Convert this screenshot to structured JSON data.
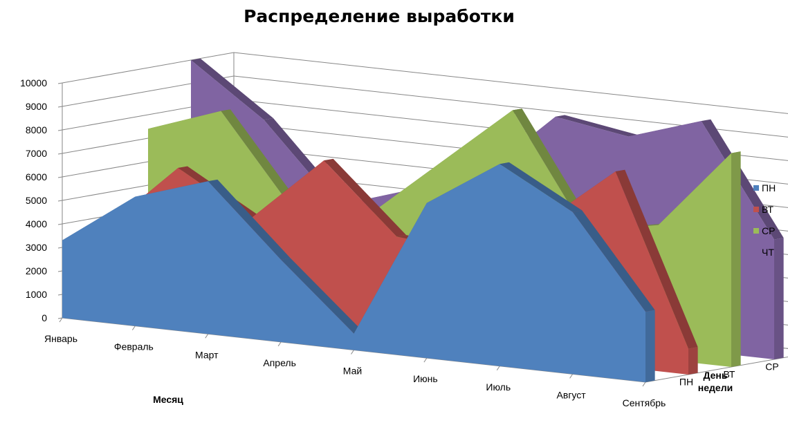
{
  "chart_data": {
    "type": "area",
    "variant": "3d-area",
    "title": "Распределение выработки",
    "xlabel": "Месяц",
    "zlabel_lines": [
      "День",
      "недели"
    ],
    "ylim": [
      0,
      10000
    ],
    "yticks": [
      "0",
      "1000",
      "2000",
      "3000",
      "4000",
      "5000",
      "6000",
      "7000",
      "8000",
      "9000",
      "10000"
    ],
    "categories": [
      "Январь",
      "Февраль",
      "Март",
      "Апрель",
      "Май",
      "Июнь",
      "Июль",
      "Август",
      "Сентябрь"
    ],
    "series": [
      {
        "name": "ПН",
        "color": "#4F81BD",
        "values": [
          3300,
          5500,
          6500,
          3500,
          700,
          6600,
          8600,
          6900,
          3000
        ]
      },
      {
        "name": "ВТ",
        "color": "#C0504D",
        "values": [
          3500,
          6400,
          4600,
          7400,
          4500,
          4200,
          5800,
          8300,
          1100
        ]
      },
      {
        "name": "СР",
        "color": "#9BBB59",
        "values": [
          7400,
          8500,
          4600,
          4700,
          7300,
          9900,
          5100,
          5700,
          9100
        ]
      },
      {
        "name": "ЧТ",
        "color": "#8064A2",
        "values": [
          10000,
          7800,
          4500,
          5500,
          6500,
          9300,
          8800,
          9800,
          5100
        ]
      }
    ],
    "legend": {
      "position": "right"
    },
    "grid": true
  }
}
